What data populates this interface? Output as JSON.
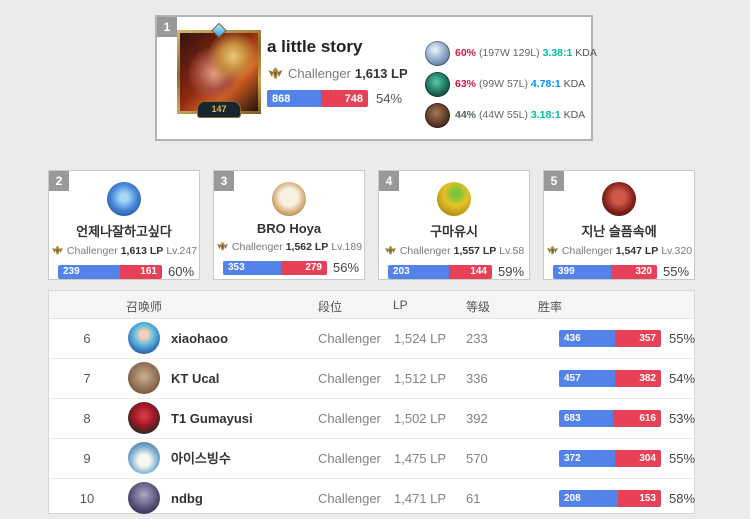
{
  "colors": {
    "win_blue": "#5383e8",
    "loss_red": "#e84057",
    "winrate_red": "#d31a45",
    "kda_teal": "#00bba3",
    "kda_blue": "#0093ff",
    "text_dark": "#555e5e"
  },
  "top_player": {
    "rank": "1",
    "name": "a little story",
    "tier": "Challenger",
    "lp": "1,613 LP",
    "level": "147",
    "wins": "868",
    "losses": "748",
    "winrate": "54%",
    "win_pct": 53.7,
    "champions": [
      {
        "icon": "champion-icon-1",
        "winrate": "60%",
        "winrate_color": "#d31a45",
        "record": "(197W 129L)",
        "kda": "3.38:1",
        "kda_color": "#00bba3",
        "kda_label": "KDA"
      },
      {
        "icon": "champion-icon-2",
        "winrate": "63%",
        "winrate_color": "#d31a45",
        "record": "(99W 57L)",
        "kda": "4.78:1",
        "kda_color": "#0093ff",
        "kda_label": "KDA"
      },
      {
        "icon": "champion-icon-3",
        "winrate": "44%",
        "winrate_color": "#555e5e",
        "record": "(44W 55L)",
        "kda": "3.18:1",
        "kda_color": "#00bba3",
        "kda_label": "KDA"
      }
    ]
  },
  "cards": [
    {
      "rank": "2",
      "name": "언제나잘하고싶다",
      "tier": "Challenger",
      "lp": "1,613 LP",
      "level": "Lv.247",
      "wins": "239",
      "losses": "161",
      "winrate": "60%",
      "win_pct": 59.8
    },
    {
      "rank": "3",
      "name": "BRO Hoya",
      "tier": "Challenger",
      "lp": "1,562 LP",
      "level": "Lv.189",
      "wins": "353",
      "losses": "279",
      "winrate": "56%",
      "win_pct": 55.9
    },
    {
      "rank": "4",
      "name": "구마유시",
      "tier": "Challenger",
      "lp": "1,557 LP",
      "level": "Lv.58",
      "wins": "203",
      "losses": "144",
      "winrate": "59%",
      "win_pct": 58.5
    },
    {
      "rank": "5",
      "name": "지난 슬픔속에",
      "tier": "Challenger",
      "lp": "1,547 LP",
      "level": "Lv.320",
      "wins": "399",
      "losses": "320",
      "winrate": "55%",
      "win_pct": 55.5
    }
  ],
  "table": {
    "headers": {
      "summoner": "召唤师",
      "tier": "段位",
      "lp": "LP",
      "level": "等级",
      "winrate": "胜率"
    },
    "rows": [
      {
        "rank": "6",
        "name": "xiaohaoo",
        "tier": "Challenger",
        "lp": "1,524 LP",
        "level": "233",
        "wins": "436",
        "losses": "357",
        "winrate": "55%",
        "win_pct": 55.0
      },
      {
        "rank": "7",
        "name": "KT Ucal",
        "tier": "Challenger",
        "lp": "1,512 LP",
        "level": "336",
        "wins": "457",
        "losses": "382",
        "winrate": "54%",
        "win_pct": 54.5
      },
      {
        "rank": "8",
        "name": "T1 Gumayusi",
        "tier": "Challenger",
        "lp": "1,502 LP",
        "level": "392",
        "wins": "683",
        "losses": "616",
        "winrate": "53%",
        "win_pct": 52.6
      },
      {
        "rank": "9",
        "name": "아이스빙수",
        "tier": "Challenger",
        "lp": "1,475 LP",
        "level": "570",
        "wins": "372",
        "losses": "304",
        "winrate": "55%",
        "win_pct": 55.0
      },
      {
        "rank": "10",
        "name": "ndbg",
        "tier": "Challenger",
        "lp": "1,471 LP",
        "level": "61",
        "wins": "208",
        "losses": "153",
        "winrate": "58%",
        "win_pct": 57.6
      }
    ]
  }
}
